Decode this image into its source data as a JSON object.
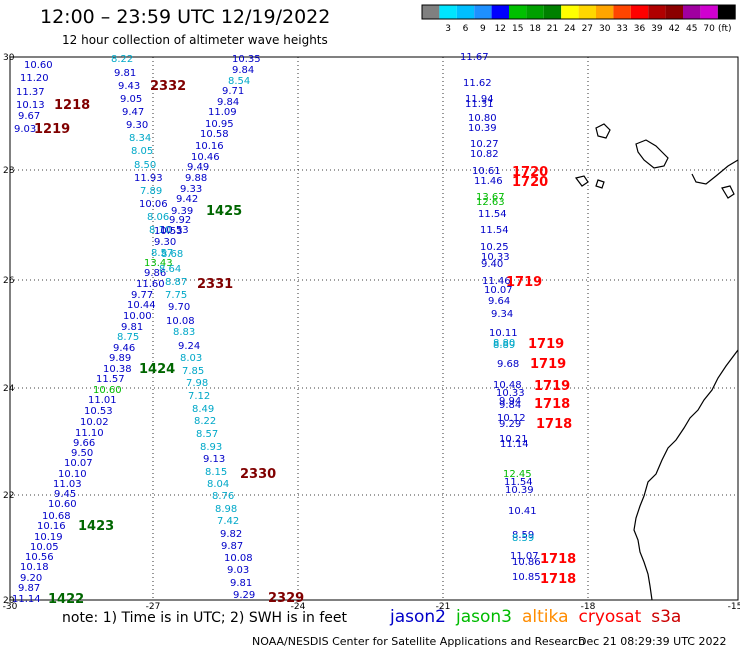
{
  "title": "12:00 – 23:59 UTC 12/19/2022",
  "subtitle": "12 hour collection of altimeter wave heights",
  "color_scale": {
    "unit": "(ft)",
    "labels": [
      "3",
      "6",
      "9",
      "12",
      "15",
      "18",
      "21",
      "24",
      "27",
      "30",
      "33",
      "36",
      "39",
      "42",
      "45",
      "70"
    ],
    "colors": [
      "#808080",
      "#00e5ff",
      "#00bfff",
      "#1e90ff",
      "#0000ff",
      "#00c000",
      "#00a000",
      "#008000",
      "#ffff00",
      "#ffd700",
      "#ffa500",
      "#ff4500",
      "#ff0000",
      "#b00000",
      "#8b0000",
      "#a000a0",
      "#d000d0",
      "#000000"
    ]
  },
  "map": {
    "lat_ticks": [
      "30",
      "28",
      "26",
      "24",
      "22",
      "20"
    ],
    "lon_ticks": [
      "-30",
      "-27",
      "-24",
      "-21",
      "-18",
      "-15"
    ],
    "level_colors": {
      "b": "#0000c8",
      "c": "#00a8c8",
      "g": "#00bb00",
      "d": "#006600",
      "m": "#800000",
      "r": "#ff0000"
    },
    "points": [
      [
        "10.60",
        "b",
        24,
        64
      ],
      [
        "11.20",
        "b",
        20,
        77
      ],
      [
        "11.37",
        "b",
        16,
        91
      ],
      [
        "10.13",
        "b",
        16,
        104
      ],
      [
        "9.67",
        "b",
        18,
        115
      ],
      [
        "9.03",
        "b",
        14,
        128
      ],
      [
        "8.22",
        "c",
        111,
        58
      ],
      [
        "9.81",
        "b",
        114,
        72
      ],
      [
        "9.43",
        "b",
        118,
        85
      ],
      [
        "9.05",
        "b",
        120,
        98
      ],
      [
        "9.47",
        "b",
        122,
        111
      ],
      [
        "9.30",
        "b",
        126,
        124
      ],
      [
        "8.34",
        "c",
        129,
        137
      ],
      [
        "8.05",
        "c",
        131,
        150
      ],
      [
        "8.50",
        "c",
        134,
        164
      ],
      [
        "11.93",
        "b",
        134,
        177
      ],
      [
        "7.89",
        "c",
        140,
        190
      ],
      [
        "10.06",
        "b",
        139,
        203
      ],
      [
        "8.06",
        "c",
        147,
        216
      ],
      [
        "8.10",
        "c",
        149,
        229
      ],
      [
        "10.53",
        "b",
        160,
        229
      ],
      [
        "9.30",
        "b",
        154,
        241
      ],
      [
        "8.57",
        "c",
        151,
        252
      ],
      [
        "13.43",
        "g",
        144,
        262
      ],
      [
        "9.86",
        "b",
        144,
        272
      ],
      [
        "11.60",
        "b",
        136,
        283
      ],
      [
        "9.77",
        "b",
        131,
        294
      ],
      [
        "10.44",
        "b",
        127,
        304
      ],
      [
        "10.00",
        "b",
        123,
        315
      ],
      [
        "9.81",
        "b",
        121,
        326
      ],
      [
        "8.75",
        "c",
        117,
        336
      ],
      [
        "9.46",
        "b",
        113,
        347
      ],
      [
        "9.89",
        "b",
        109,
        357
      ],
      [
        "10.38",
        "b",
        103,
        368
      ],
      [
        "11.57",
        "b",
        96,
        378
      ],
      [
        "10.60",
        "g",
        93,
        389
      ],
      [
        "11.01",
        "b",
        88,
        399
      ],
      [
        "10.53",
        "b",
        84,
        410
      ],
      [
        "10.02",
        "b",
        80,
        421
      ],
      [
        "11.10",
        "b",
        75,
        432
      ],
      [
        "9.66",
        "b",
        73,
        442
      ],
      [
        "9.50",
        "b",
        71,
        452
      ],
      [
        "10.07",
        "b",
        64,
        462
      ],
      [
        "10.10",
        "b",
        58,
        473
      ],
      [
        "11.03",
        "b",
        53,
        483
      ],
      [
        "9.45",
        "b",
        54,
        493
      ],
      [
        "10.60",
        "b",
        48,
        503
      ],
      [
        "10.68",
        "b",
        42,
        515
      ],
      [
        "10.16",
        "b",
        37,
        525
      ],
      [
        "10.19",
        "b",
        34,
        536
      ],
      [
        "10.05",
        "b",
        30,
        546
      ],
      [
        "10.56",
        "b",
        25,
        556
      ],
      [
        "10.18",
        "b",
        20,
        566
      ],
      [
        "9.20",
        "b",
        20,
        577
      ],
      [
        "9.87",
        "b",
        18,
        587
      ],
      [
        "11.14",
        "b",
        12,
        598
      ],
      [
        "10.35",
        "b",
        232,
        58
      ],
      [
        "9.84",
        "b",
        232,
        69
      ],
      [
        "8.54",
        "c",
        228,
        80
      ],
      [
        "9.71",
        "b",
        222,
        90
      ],
      [
        "9.84",
        "b",
        217,
        101
      ],
      [
        "11.09",
        "b",
        208,
        111
      ],
      [
        "10.95",
        "b",
        205,
        123
      ],
      [
        "10.58",
        "b",
        200,
        133
      ],
      [
        "10.16",
        "b",
        195,
        145
      ],
      [
        "10.46",
        "b",
        191,
        156
      ],
      [
        "9.49",
        "b",
        187,
        166
      ],
      [
        "9.88",
        "b",
        185,
        177
      ],
      [
        "9.33",
        "b",
        180,
        188
      ],
      [
        "9.42",
        "b",
        176,
        198
      ],
      [
        "9.39",
        "b",
        171,
        210
      ],
      [
        "9.92",
        "b",
        169,
        219
      ],
      [
        "10.53",
        "b",
        154,
        230
      ],
      [
        "8.68",
        "c",
        161,
        253
      ],
      [
        "8.64",
        "c",
        159,
        268
      ],
      [
        "8.87",
        "c",
        165,
        281
      ],
      [
        "7.75",
        "c",
        165,
        294
      ],
      [
        "9.70",
        "b",
        168,
        306
      ],
      [
        "10.08",
        "b",
        166,
        320
      ],
      [
        "8.83",
        "c",
        173,
        331
      ],
      [
        "9.24",
        "b",
        178,
        345
      ],
      [
        "8.03",
        "c",
        180,
        357
      ],
      [
        "7.85",
        "c",
        182,
        370
      ],
      [
        "7.98",
        "c",
        186,
        382
      ],
      [
        "7.12",
        "c",
        188,
        395
      ],
      [
        "8.49",
        "c",
        192,
        408
      ],
      [
        "8.22",
        "c",
        194,
        420
      ],
      [
        "8.57",
        "c",
        196,
        433
      ],
      [
        "8.93",
        "c",
        200,
        446
      ],
      [
        "9.13",
        "b",
        203,
        458
      ],
      [
        "8.15",
        "c",
        205,
        471
      ],
      [
        "8.04",
        "c",
        207,
        483
      ],
      [
        "8.76",
        "c",
        212,
        495
      ],
      [
        "8.98",
        "c",
        215,
        508
      ],
      [
        "7.42",
        "c",
        217,
        520
      ],
      [
        "9.82",
        "b",
        220,
        533
      ],
      [
        "9.87",
        "b",
        221,
        545
      ],
      [
        "10.08",
        "b",
        224,
        557
      ],
      [
        "9.03",
        "b",
        227,
        569
      ],
      [
        "9.81",
        "b",
        230,
        582
      ],
      [
        "9.29",
        "b",
        233,
        594
      ],
      [
        "11.67",
        "b",
        460,
        56
      ],
      [
        "11.62",
        "b",
        463,
        82
      ],
      [
        "11.94",
        "b",
        465,
        98
      ],
      [
        "11.31",
        "b",
        465,
        103
      ],
      [
        "10.80",
        "b",
        468,
        117
      ],
      [
        "10.39",
        "b",
        468,
        127
      ],
      [
        "10.27",
        "b",
        470,
        143
      ],
      [
        "10.82",
        "b",
        470,
        153
      ],
      [
        "10.61",
        "b",
        472,
        170
      ],
      [
        "11.46",
        "b",
        474,
        180
      ],
      [
        "13.67",
        "g",
        476,
        196
      ],
      [
        "12.63",
        "g",
        476,
        201
      ],
      [
        "11.54",
        "b",
        478,
        213
      ],
      [
        "11.54",
        "b",
        480,
        229
      ],
      [
        "10.25",
        "b",
        480,
        246
      ],
      [
        "10.33",
        "b",
        481,
        256
      ],
      [
        "9.40",
        "b",
        481,
        263
      ],
      [
        "11.46",
        "b",
        482,
        280
      ],
      [
        "10.07",
        "b",
        484,
        289
      ],
      [
        "9.64",
        "b",
        488,
        300
      ],
      [
        "9.34",
        "b",
        491,
        313
      ],
      [
        "10.11",
        "b",
        489,
        332
      ],
      [
        "8.80",
        "c",
        493,
        342
      ],
      [
        "8.89",
        "c",
        493,
        344
      ],
      [
        "9.68",
        "b",
        497,
        363
      ],
      [
        "10.48",
        "b",
        493,
        384
      ],
      [
        "10.33",
        "b",
        496,
        392
      ],
      [
        "9.94",
        "b",
        499,
        400
      ],
      [
        "9.84",
        "b",
        499,
        404
      ],
      [
        "10.12",
        "b",
        497,
        417
      ],
      [
        "9.29",
        "b",
        499,
        423
      ],
      [
        "10.21",
        "b",
        499,
        438
      ],
      [
        "11.14",
        "b",
        500,
        443
      ],
      [
        "12.45",
        "g",
        503,
        473
      ],
      [
        "11.54",
        "b",
        504,
        481
      ],
      [
        "10.39",
        "b",
        505,
        489
      ],
      [
        "10.41",
        "b",
        508,
        510
      ],
      [
        "8.59",
        "b",
        512,
        534
      ],
      [
        "8.59",
        "c",
        512,
        537
      ],
      [
        "11.07",
        "b",
        510,
        555
      ],
      [
        "10.86",
        "b",
        512,
        561
      ],
      [
        "10.85",
        "b",
        512,
        576
      ]
    ],
    "passes": [
      [
        "1218",
        "m",
        54,
        104
      ],
      [
        "1219",
        "m",
        34,
        128
      ],
      [
        "2332",
        "m",
        150,
        85
      ],
      [
        "1425",
        "d",
        206,
        210
      ],
      [
        "2331",
        "m",
        197,
        283
      ],
      [
        "1424",
        "d",
        139,
        368
      ],
      [
        "2330",
        "m",
        240,
        473
      ],
      [
        "1423",
        "d",
        78,
        525
      ],
      [
        "1422",
        "d",
        48,
        598
      ],
      [
        "2329",
        "m",
        268,
        597
      ],
      [
        "1720",
        "r",
        512,
        171
      ],
      [
        "1720",
        "r",
        512,
        181
      ],
      [
        "1719",
        "r",
        506,
        281
      ],
      [
        "1719",
        "r",
        528,
        343
      ],
      [
        "1719",
        "r",
        530,
        363
      ],
      [
        "1719",
        "r",
        534,
        385
      ],
      [
        "1718",
        "r",
        534,
        403
      ],
      [
        "1718",
        "r",
        536,
        423
      ],
      [
        "1718",
        "r",
        540,
        558
      ],
      [
        "1718",
        "r",
        540,
        578
      ]
    ]
  },
  "note": "note:  1) Time is in UTC; 2) SWH is in feet",
  "satellites": [
    {
      "name": "jason2",
      "color": "#0000c8"
    },
    {
      "name": "jason3",
      "color": "#00bb00"
    },
    {
      "name": "altika",
      "color": "#ff8c00"
    },
    {
      "name": "cryosat",
      "color": "#ff0000"
    },
    {
      "name": "s3a",
      "color": "#cc0000"
    }
  ],
  "credit": "NOAA/NESDIS Center for Satellite Applications and Research",
  "timestamp": "Dec 21 08:29:39 UTC 2022"
}
